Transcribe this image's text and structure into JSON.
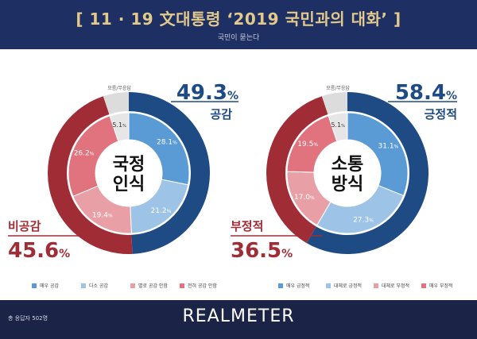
{
  "header": {
    "title": "[ 11 · 19 文대통령 ‘2019 국민과의 대화’ ]",
    "subtitle": "국민이 묻는다"
  },
  "chart_data": [
    {
      "type": "pie",
      "center_label": [
        "국정",
        "인식"
      ],
      "series": [
        {
          "name": "매우 공감",
          "value": 28.1,
          "label": "28.1",
          "color": "#5b9bd5"
        },
        {
          "name": "다소 공감",
          "value": 21.2,
          "label": "21.2",
          "color": "#9dc3e6"
        },
        {
          "name": "별로 공감 안함",
          "value": 19.4,
          "label": "19.4",
          "color": "#e8a0a6"
        },
        {
          "name": "전혀 공감 안함",
          "value": 26.2,
          "label": "26.2",
          "color": "#e0737d"
        },
        {
          "name": "모름/무응답",
          "value": 5.1,
          "label": "5.1",
          "color": "#e6e6e6"
        }
      ],
      "outer": [
        {
          "name": "공감",
          "value": 49.3,
          "color": "#1f4b85"
        },
        {
          "name": "비공감",
          "value": 45.6,
          "color": "#a02d35"
        },
        {
          "name": "모름/무응답",
          "value": 5.1,
          "color": "#dcdcdc"
        }
      ],
      "positive": {
        "value": "49.3",
        "label": "공감"
      },
      "negative": {
        "value": "45.6",
        "label": "비공감"
      },
      "dk_label": "모름/무응답"
    },
    {
      "type": "pie",
      "center_label": [
        "소통",
        "방식"
      ],
      "series": [
        {
          "name": "매우 긍정적",
          "value": 31.1,
          "label": "31.1",
          "color": "#5b9bd5"
        },
        {
          "name": "대체로 긍정적",
          "value": 27.3,
          "label": "27.3",
          "color": "#9dc3e6"
        },
        {
          "name": "대체로 부정적",
          "value": 17.0,
          "label": "17.0",
          "color": "#e8a0a6"
        },
        {
          "name": "매우 부정적",
          "value": 19.5,
          "label": "19.5",
          "color": "#e0737d"
        },
        {
          "name": "모름/무응답",
          "value": 5.1,
          "label": "5.1",
          "color": "#e6e6e6"
        }
      ],
      "outer": [
        {
          "name": "긍정적",
          "value": 58.4,
          "color": "#1f4b85"
        },
        {
          "name": "부정적",
          "value": 36.5,
          "color": "#a02d35"
        },
        {
          "name": "모름/무응답",
          "value": 5.1,
          "color": "#dcdcdc"
        }
      ],
      "positive": {
        "value": "58.4",
        "label": "긍정적"
      },
      "negative": {
        "value": "36.5",
        "label": "부정적"
      },
      "dk_label": "모름/무응답"
    }
  ],
  "percent_sign": "%",
  "footer": {
    "note": "총 응답자 502명",
    "brand": "REALMETER"
  }
}
